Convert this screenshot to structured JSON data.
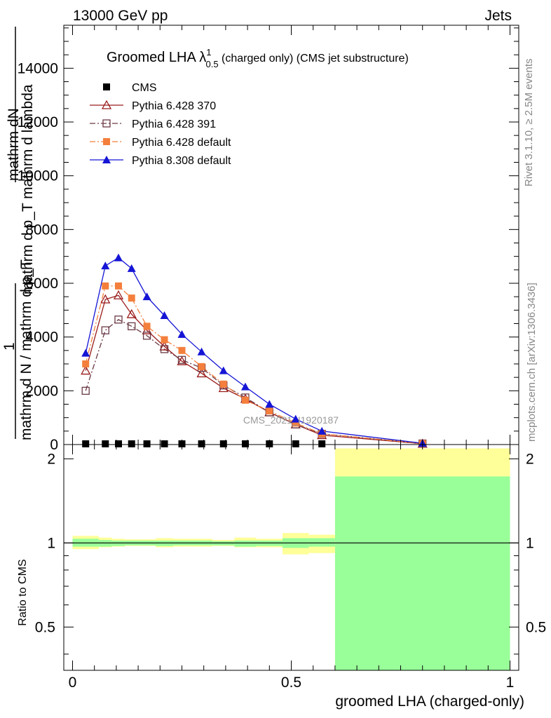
{
  "header": {
    "left": "13000 GeV pp",
    "right": "Jets"
  },
  "side_labels": {
    "rivet": "Rivet 3.1.10, ≥ 2.5M events",
    "mcplots": "mcplots.cern.ch [arXiv:1306.3436]"
  },
  "watermark": "CMS_2021_I1920187",
  "chart_data": [
    {
      "type": "line",
      "title_main": "Groomed LHA ",
      "title_lambda": "λ",
      "title_sup": "1",
      "title_sub": "0.5",
      "title_rest": "  (charged only) (CMS jet substructure)",
      "ylabel_top": "mathrm dN",
      "ylabel_mid": "mathrm d p_T mathrm d lambda",
      "ylabel_one": "1",
      "ylabel_bottom": "mathrm d N / mathrm d p_T",
      "ylim": [
        0,
        15600
      ],
      "yticks": [
        0,
        2000,
        4000,
        6000,
        8000,
        10000,
        12000,
        14000
      ],
      "ytick_labels": [
        "0",
        "2000",
        "4000",
        "6000",
        "8000",
        "10000",
        "12000",
        "14000"
      ],
      "xlim": [
        -0.02,
        1.02
      ],
      "series": [
        {
          "name": "CMS",
          "color": "#000000",
          "marker": "square-filled",
          "dash": "",
          "x": [
            0.03,
            0.075,
            0.105,
            0.135,
            0.17,
            0.21,
            0.25,
            0.295,
            0.345,
            0.395,
            0.45,
            0.51,
            0.57
          ],
          "y": [
            0,
            0,
            0,
            0,
            0,
            0,
            0,
            0,
            0,
            0,
            0,
            0,
            0
          ]
        },
        {
          "name": "Pythia 6.428 370",
          "color": "#9a1c1c",
          "marker": "triangle-open",
          "dash": "",
          "x": [
            0.03,
            0.075,
            0.105,
            0.135,
            0.17,
            0.21,
            0.25,
            0.295,
            0.345,
            0.395,
            0.45,
            0.51,
            0.57,
            0.8
          ],
          "y": [
            2750,
            5400,
            5550,
            4850,
            4250,
            3650,
            3100,
            2650,
            2100,
            1700,
            1200,
            750,
            350,
            30
          ]
        },
        {
          "name": "Pythia 6.428 391",
          "color": "#6b3a45",
          "marker": "square-open",
          "dash": "8,3,2,3",
          "x": [
            0.03,
            0.075,
            0.105,
            0.135,
            0.17,
            0.21,
            0.25,
            0.295,
            0.345,
            0.395,
            0.45,
            0.51,
            0.57,
            0.8
          ],
          "y": [
            2000,
            4250,
            4650,
            4400,
            4050,
            3550,
            3150,
            2850,
            2200,
            1750,
            1200,
            750,
            400,
            40
          ]
        },
        {
          "name": "Pythia 6.428 default",
          "color": "#f47f3c",
          "marker": "square-filled",
          "dash": "8,3,2,3",
          "x": [
            0.03,
            0.075,
            0.105,
            0.135,
            0.17,
            0.21,
            0.25,
            0.295,
            0.345,
            0.395,
            0.45,
            0.51,
            0.57,
            0.8
          ],
          "y": [
            3000,
            5900,
            5900,
            5450,
            4400,
            3900,
            3500,
            2900,
            2250,
            1650,
            1250,
            800,
            400,
            40
          ]
        },
        {
          "name": "Pythia 8.308 default",
          "color": "#1515d6",
          "marker": "triangle-filled",
          "dash": "",
          "x": [
            0.03,
            0.075,
            0.105,
            0.135,
            0.17,
            0.21,
            0.25,
            0.295,
            0.345,
            0.395,
            0.45,
            0.51,
            0.57,
            0.8
          ],
          "y": [
            3400,
            6650,
            6950,
            6550,
            5500,
            4800,
            4100,
            3450,
            2750,
            2150,
            1500,
            950,
            500,
            50
          ]
        }
      ]
    },
    {
      "type": "area",
      "ylabel": "Ratio to CMS",
      "xlabel": "groomed LHA (charged-only)",
      "ylim": [
        0.35,
        2.25
      ],
      "yticks": [
        0.5,
        1,
        2
      ],
      "ytick_labels": [
        "0.5",
        "1",
        "2"
      ],
      "xlim": [
        -0.02,
        1.02
      ],
      "xticks": [
        0,
        0.5,
        1
      ],
      "xtick_labels": [
        "0",
        "0.5",
        "1"
      ],
      "band_colors": {
        "inner": "#99ff99",
        "outer": "#ffff99"
      },
      "bands": [
        {
          "x0": 0.0,
          "x1": 0.06,
          "in_lo": 0.97,
          "in_hi": 1.035,
          "out_lo": 0.95,
          "out_hi": 1.06
        },
        {
          "x0": 0.06,
          "x1": 0.09,
          "in_lo": 0.97,
          "in_hi": 1.025,
          "out_lo": 0.965,
          "out_hi": 1.045
        },
        {
          "x0": 0.09,
          "x1": 0.12,
          "in_lo": 0.975,
          "in_hi": 1.02,
          "out_lo": 0.97,
          "out_hi": 1.035
        },
        {
          "x0": 0.12,
          "x1": 0.15,
          "in_lo": 0.98,
          "in_hi": 1.02,
          "out_lo": 0.975,
          "out_hi": 1.03
        },
        {
          "x0": 0.15,
          "x1": 0.19,
          "in_lo": 0.98,
          "in_hi": 1.02,
          "out_lo": 0.975,
          "out_hi": 1.03
        },
        {
          "x0": 0.19,
          "x1": 0.23,
          "in_lo": 0.975,
          "in_hi": 1.02,
          "out_lo": 0.965,
          "out_hi": 1.04
        },
        {
          "x0": 0.23,
          "x1": 0.27,
          "in_lo": 0.98,
          "in_hi": 1.02,
          "out_lo": 0.97,
          "out_hi": 1.035
        },
        {
          "x0": 0.27,
          "x1": 0.32,
          "in_lo": 0.98,
          "in_hi": 1.02,
          "out_lo": 0.97,
          "out_hi": 1.035
        },
        {
          "x0": 0.32,
          "x1": 0.37,
          "in_lo": 0.98,
          "in_hi": 1.015,
          "out_lo": 0.975,
          "out_hi": 1.025
        },
        {
          "x0": 0.37,
          "x1": 0.42,
          "in_lo": 0.97,
          "in_hi": 1.02,
          "out_lo": 0.965,
          "out_hi": 1.045
        },
        {
          "x0": 0.42,
          "x1": 0.48,
          "in_lo": 0.975,
          "in_hi": 1.02,
          "out_lo": 0.965,
          "out_hi": 1.035
        },
        {
          "x0": 0.48,
          "x1": 0.54,
          "in_lo": 0.96,
          "in_hi": 1.04,
          "out_lo": 0.91,
          "out_hi": 1.085
        },
        {
          "x0": 0.54,
          "x1": 0.6,
          "in_lo": 0.97,
          "in_hi": 1.04,
          "out_lo": 0.92,
          "out_hi": 1.07
        },
        {
          "x0": 0.6,
          "x1": 1.0,
          "in_lo": 0.35,
          "in_hi": 1.73,
          "out_lo": 0.35,
          "out_hi": 2.18
        }
      ],
      "reference_line": 1
    }
  ]
}
